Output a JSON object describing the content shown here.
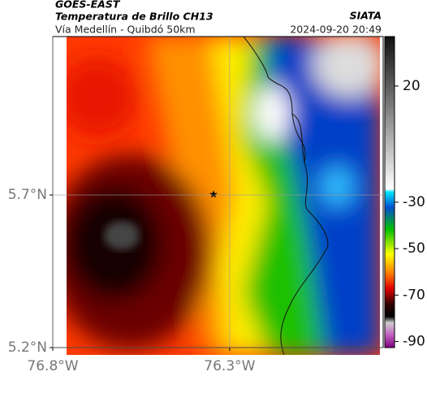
{
  "header": {
    "source": "GOES-EAST",
    "title": "Temperatura de Brillo CH13",
    "subtitle": "Vía Medellín - Quibdó 50km",
    "credit": "SIATA",
    "timestamp": "2024-09-20 20:49"
  },
  "map": {
    "xlim": [
      -76.8,
      -75.866
    ],
    "ylim": [
      5.2,
      6.219
    ],
    "xticks": [
      {
        "value": -76.8,
        "label": "76.8°W"
      },
      {
        "value": -76.3,
        "label": "76.3°W"
      }
    ],
    "yticks": [
      {
        "value": 5.7,
        "label": "5.7°N"
      },
      {
        "value": 5.2,
        "label": "5.2°N"
      }
    ]
  },
  "colorbar": {
    "lim": [
      -92.6,
      41.3
    ],
    "ticks": [
      20,
      -30,
      -50,
      -70,
      -90
    ]
  }
}
